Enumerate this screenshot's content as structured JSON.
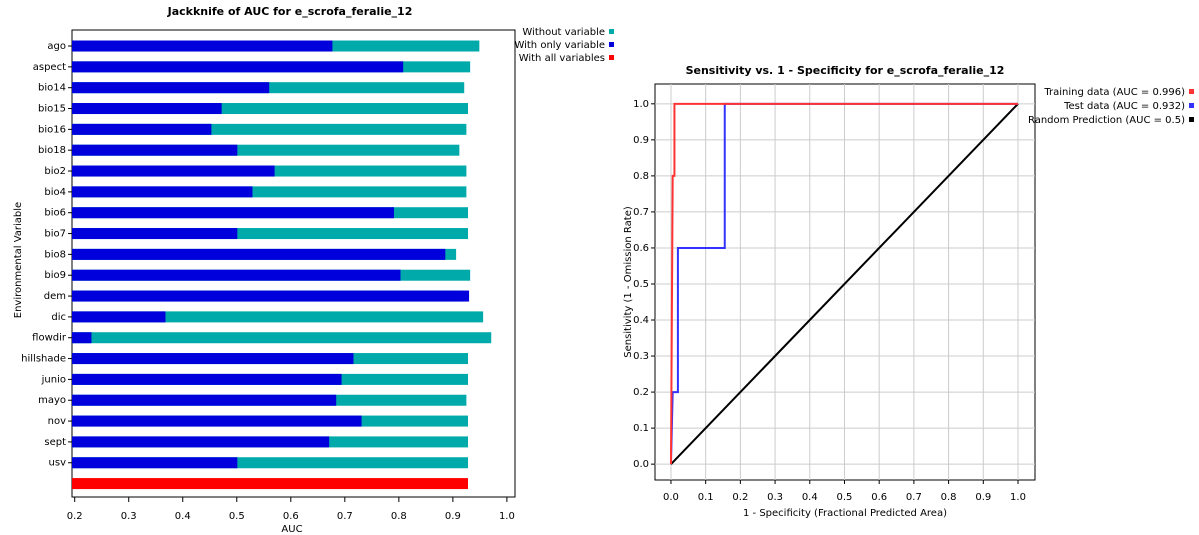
{
  "chart_data": [
    {
      "type": "bar",
      "orientation": "horizontal",
      "title": "Jackknife of AUC for e_scrofa_feralie_12",
      "xlabel": "AUC",
      "ylabel": "Environmental Variable",
      "categories": [
        "ago",
        "aspect",
        "bio14",
        "bio15",
        "bio16",
        "bio18",
        "bio2",
        "bio4",
        "bio6",
        "bio7",
        "bio8",
        "bio9",
        "dem",
        "dic",
        "flowdir",
        "hillshade",
        "junio",
        "mayo",
        "nov",
        "sept",
        "usv",
        null
      ],
      "series": [
        {
          "name": "Without variable",
          "color": "#00aaaa",
          "values": [
            0.949,
            0.932,
            0.921,
            0.928,
            0.925,
            0.912,
            0.925,
            0.925,
            0.928,
            0.928,
            0.906,
            0.932,
            0.919,
            0.956,
            0.971,
            0.928,
            0.928,
            0.925,
            0.928,
            0.928,
            0.928,
            null
          ]
        },
        {
          "name": "With only variable",
          "color": "#0000dd",
          "values": [
            0.677,
            0.808,
            0.56,
            0.472,
            0.453,
            0.501,
            0.57,
            0.529,
            0.791,
            0.501,
            0.886,
            0.803,
            0.93,
            0.368,
            0.231,
            0.716,
            0.694,
            0.684,
            0.731,
            0.671,
            0.501,
            null
          ]
        },
        {
          "name": "With all variables",
          "color": "#ff0000",
          "values": [
            null,
            null,
            null,
            null,
            null,
            null,
            null,
            null,
            null,
            null,
            null,
            null,
            null,
            null,
            null,
            null,
            null,
            null,
            null,
            null,
            null,
            0.928
          ]
        }
      ],
      "xlim": [
        0.195,
        1.015
      ],
      "xticks": [
        0.2,
        0.3,
        0.4,
        0.5,
        0.6,
        0.7,
        0.8,
        0.9,
        {
          "value": 1,
          "label": "1.0"
        }
      ],
      "grid": false,
      "legend": "top-right"
    },
    {
      "type": "line",
      "title": "Sensitivity vs. 1 - Specificity for e_scrofa_feralie_12",
      "xlabel": "1 - Specificity  (Fractional Predicted Area)",
      "ylabel": "Sensitivity  (1 - Omission Rate)",
      "series": [
        {
          "name": "Training data (AUC = 0.996)",
          "color": "#ff3333",
          "x": [
            0,
            0.005,
            0.01,
            0.01,
            1
          ],
          "values": [
            0,
            0.8,
            0.8,
            1,
            1
          ]
        },
        {
          "name": "Test data (AUC = 0.932)",
          "color": "#3333ff",
          "x": [
            0,
            0.005,
            0.02,
            0.02,
            0.155,
            0.155,
            1
          ],
          "values": [
            0,
            0.2,
            0.2,
            0.6,
            0.6,
            1,
            1
          ]
        },
        {
          "name": "Random Prediction (AUC = 0.5)",
          "color": "#000000",
          "x": [
            0,
            1
          ],
          "values": [
            0,
            1
          ]
        }
      ],
      "xlim": [
        -0.046,
        1.049
      ],
      "ylim": [
        -0.044,
        1.055
      ],
      "xticks": [
        {
          "value": 0,
          "label": "0.0"
        },
        0.1,
        0.2,
        0.3,
        0.4,
        0.5,
        0.6,
        0.7,
        0.8,
        0.9,
        {
          "value": 1,
          "label": "1.0"
        }
      ],
      "yticks": [
        {
          "value": 0,
          "label": "0.0"
        },
        0.1,
        0.2,
        0.3,
        0.4,
        0.5,
        0.6,
        0.7,
        0.8,
        0.9,
        {
          "value": 1,
          "label": "1.0"
        }
      ],
      "grid": true,
      "legend": "right"
    }
  ]
}
